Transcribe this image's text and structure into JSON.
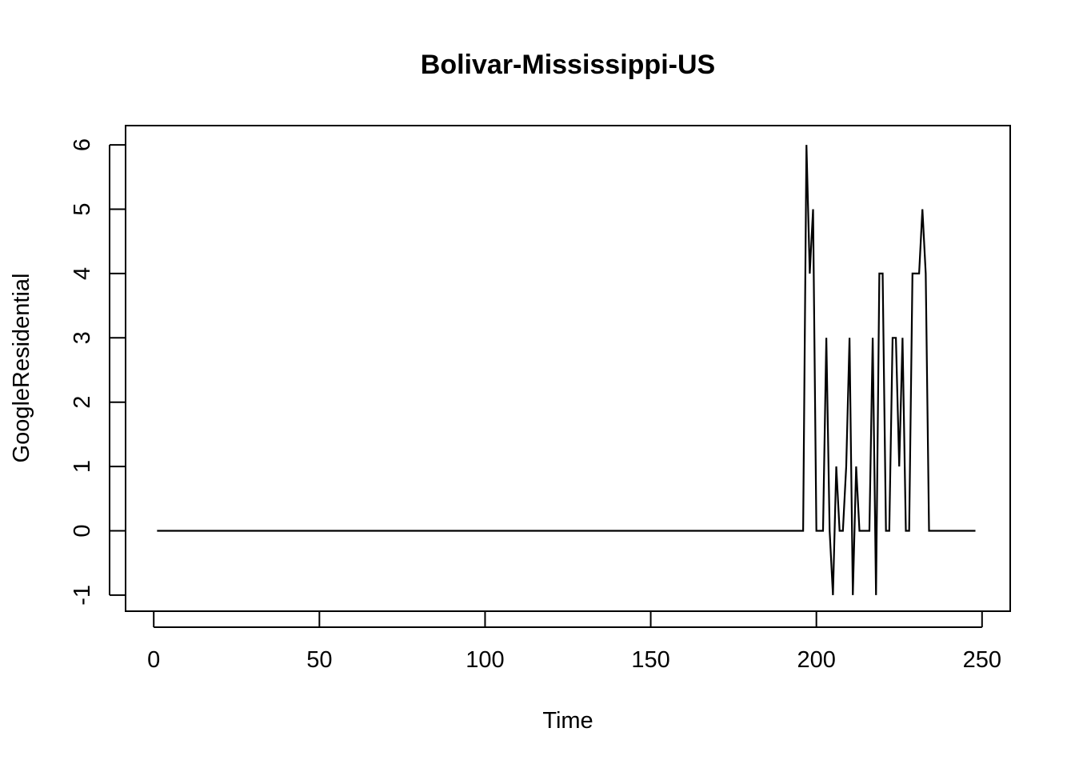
{
  "chart_data": {
    "type": "line",
    "title": "Bolivar-Mississippi-US",
    "xlabel": "Time",
    "ylabel": "GoogleResidential",
    "xlim": [
      -8.5,
      258.5
    ],
    "ylim": [
      -1.25,
      6.3
    ],
    "x_ticks": [
      0,
      50,
      100,
      150,
      200,
      250
    ],
    "y_ticks": [
      -1,
      0,
      1,
      2,
      3,
      4,
      5,
      6
    ],
    "grid": false,
    "legend": "none",
    "line_color": "#000000",
    "series": [
      {
        "x": [
          1,
          196,
          197,
          198,
          199,
          200,
          201,
          202,
          203,
          204,
          205,
          206,
          207,
          208,
          209,
          210,
          211,
          212,
          213,
          214,
          215,
          216,
          217,
          218,
          219,
          220,
          221,
          222,
          223,
          224,
          225,
          226,
          227,
          228,
          229,
          230,
          231,
          232,
          233,
          234,
          235,
          236,
          248
        ],
        "y": [
          0,
          0,
          6,
          4,
          5,
          0,
          0,
          0,
          3,
          0,
          -1,
          1,
          0,
          0,
          1,
          3,
          -1,
          1,
          0,
          0,
          0,
          0,
          3,
          -1,
          4,
          4,
          0,
          0,
          3,
          3,
          1,
          3,
          0,
          0,
          4,
          4,
          4,
          5,
          4,
          0,
          0,
          0,
          0
        ]
      }
    ]
  }
}
